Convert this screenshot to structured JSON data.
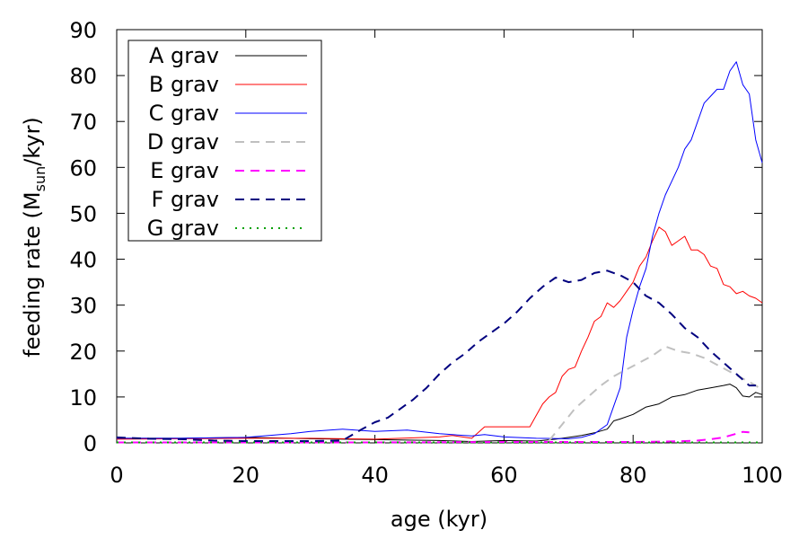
{
  "chart_data": {
    "type": "line",
    "title": "",
    "xlabel": "age (kyr)",
    "ylabel_main": "feeding rate (M",
    "ylabel_sub": "sun",
    "ylabel_tail": "/kyr)",
    "xlim": [
      0,
      100
    ],
    "ylim": [
      0,
      90
    ],
    "xticks": [
      0,
      20,
      40,
      60,
      80,
      100
    ],
    "yticks": [
      0,
      10,
      20,
      30,
      40,
      50,
      60,
      70,
      80,
      90
    ],
    "grid": false,
    "legend_position": "top-left",
    "series": [
      {
        "name": "A grav",
        "color": "#000000",
        "dash": "solid",
        "x": [
          0,
          10,
          20,
          30,
          40,
          50,
          55,
          60,
          65,
          68,
          70,
          72,
          74,
          76,
          77,
          78,
          80,
          82,
          84,
          86,
          88,
          90,
          92,
          94,
          95,
          96,
          97,
          98,
          99,
          100
        ],
        "y": [
          1.0,
          1.0,
          1.2,
          0.9,
          0.7,
          0.5,
          0.3,
          0.5,
          0.4,
          0.8,
          1.2,
          1.6,
          2.2,
          3.0,
          4.8,
          5.2,
          6.2,
          7.8,
          8.5,
          10.0,
          10.5,
          11.5,
          12.0,
          12.5,
          12.8,
          12.0,
          10.2,
          10.0,
          11.0,
          10.5
        ]
      },
      {
        "name": "B grav",
        "color": "#ff0000",
        "dash": "solid",
        "x": [
          0,
          10,
          20,
          30,
          40,
          50,
          52,
          55,
          57,
          60,
          62,
          64,
          65,
          66,
          67,
          68,
          69,
          70,
          71,
          72,
          73,
          74,
          75,
          76,
          77,
          78,
          79,
          80,
          81,
          82,
          83,
          84,
          85,
          86,
          87,
          88,
          89,
          90,
          91,
          92,
          93,
          94,
          95,
          96,
          97,
          98,
          99,
          100
        ],
        "y": [
          0.8,
          0.9,
          1.0,
          1.0,
          0.8,
          1.3,
          1.6,
          1.0,
          3.5,
          3.5,
          3.5,
          3.5,
          6.0,
          8.5,
          10.0,
          11.0,
          14.5,
          16.0,
          16.5,
          20.0,
          23.0,
          26.5,
          27.5,
          30.5,
          29.5,
          31.0,
          33.0,
          35.0,
          38.5,
          40.5,
          44.0,
          47.0,
          46.0,
          43.0,
          44.0,
          45.0,
          42.0,
          42.0,
          41.0,
          38.5,
          38.0,
          34.5,
          34.0,
          32.5,
          33.0,
          32.0,
          31.5,
          30.5
        ]
      },
      {
        "name": "C grav",
        "color": "#0000ff",
        "dash": "solid",
        "x": [
          0,
          10,
          20,
          27,
          30,
          35,
          40,
          45,
          50,
          55,
          57,
          60,
          65,
          70,
          72,
          74,
          76,
          77,
          78,
          79,
          80,
          81,
          82,
          83,
          84,
          85,
          86,
          87,
          88,
          89,
          90,
          91,
          92,
          93,
          94,
          95,
          96,
          97,
          98,
          99,
          100
        ],
        "y": [
          1.0,
          1.0,
          1.2,
          2.0,
          2.5,
          3.0,
          2.5,
          2.8,
          2.0,
          1.5,
          1.8,
          1.3,
          1.0,
          0.9,
          1.2,
          2.0,
          4.0,
          8.0,
          12.0,
          23.0,
          29.0,
          34.0,
          38.0,
          45.0,
          50.0,
          54.0,
          57.0,
          60.0,
          64.0,
          66.0,
          70.0,
          74.0,
          75.5,
          77.0,
          77.0,
          81.0,
          83.0,
          78.0,
          76.0,
          66.0,
          61.0
        ]
      },
      {
        "name": "D grav",
        "color": "#c0c0c0",
        "dash": "dashed",
        "x": [
          67,
          69,
          71,
          73,
          75,
          77,
          79,
          81,
          83,
          85,
          87,
          89,
          91,
          93,
          95,
          97,
          99,
          100
        ],
        "y": [
          0.5,
          4.0,
          7.5,
          10.0,
          12.5,
          14.5,
          16.0,
          17.5,
          19.0,
          21.0,
          20.0,
          19.5,
          18.5,
          17.0,
          15.5,
          14.0,
          12.5,
          11.5
        ]
      },
      {
        "name": "E grav",
        "color": "#ff00ff",
        "dash": "dashed",
        "x": [
          0,
          20,
          40,
          60,
          70,
          80,
          85,
          88,
          90,
          92,
          94,
          96,
          97,
          98
        ],
        "y": [
          0.1,
          0.1,
          0.1,
          0.2,
          0.2,
          0.2,
          0.3,
          0.4,
          0.5,
          0.8,
          1.2,
          2.0,
          2.4,
          2.3
        ]
      },
      {
        "name": "F grav",
        "color": "#00007f",
        "dash": "dashed",
        "x": [
          0,
          5,
          10,
          15,
          20,
          25,
          30,
          35,
          38,
          40,
          42,
          44,
          46,
          48,
          50,
          52,
          54,
          56,
          58,
          60,
          62,
          64,
          66,
          68,
          70,
          72,
          74,
          76,
          78,
          80,
          82,
          84,
          86,
          88,
          90,
          92,
          94,
          96,
          98,
          100
        ],
        "y": [
          1.2,
          0.9,
          0.8,
          0.5,
          0.4,
          0.4,
          0.4,
          0.5,
          3.0,
          4.5,
          5.5,
          7.5,
          9.5,
          12.0,
          15.0,
          17.5,
          19.5,
          22.0,
          24.0,
          26.0,
          28.5,
          31.5,
          34.0,
          36.0,
          35.0,
          35.5,
          37.0,
          37.5,
          36.5,
          35.0,
          32.0,
          30.5,
          28.0,
          25.0,
          23.0,
          20.0,
          17.5,
          15.0,
          12.5,
          12.5
        ]
      },
      {
        "name": "G grav",
        "color": "#00a000",
        "dash": "dotted",
        "x": [
          0,
          20,
          40,
          60,
          80,
          100
        ],
        "y": [
          0.1,
          0.1,
          0.1,
          0.1,
          0.1,
          0.1
        ]
      }
    ]
  }
}
